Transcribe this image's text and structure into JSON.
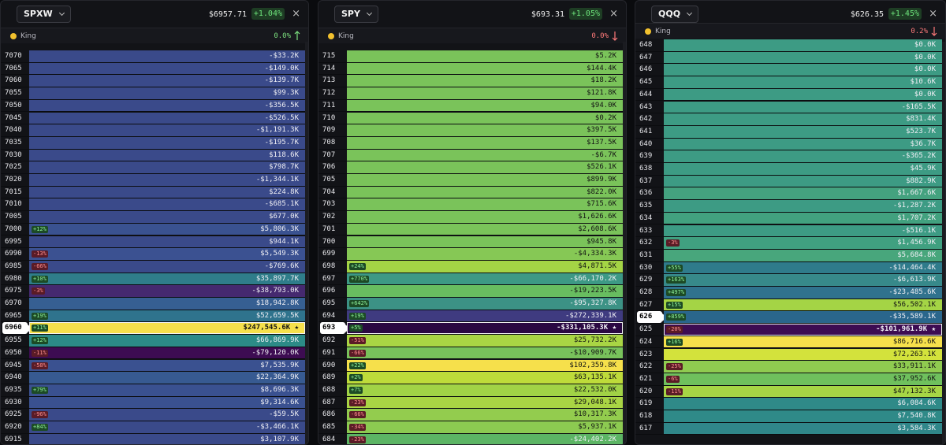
{
  "panels": [
    {
      "ticker": "SPXW",
      "price": "$6957.71",
      "change": "+1.04%",
      "king_label": "King",
      "king_pct": "0.0%",
      "trend": "up",
      "rows": [
        {
          "strike": "7070",
          "value": "-$33.2K",
          "color": "#3a4a8a"
        },
        {
          "strike": "7065",
          "value": "-$149.0K",
          "color": "#3a4a8a"
        },
        {
          "strike": "7060",
          "value": "-$139.7K",
          "color": "#3a4a8a"
        },
        {
          "strike": "7055",
          "value": "$99.3K",
          "color": "#3a4a8a"
        },
        {
          "strike": "7050",
          "value": "-$356.5K",
          "color": "#3a4a8a"
        },
        {
          "strike": "7045",
          "value": "-$526.5K",
          "color": "#3a4a8a"
        },
        {
          "strike": "7040",
          "value": "-$1,191.3K",
          "color": "#3a4a8a"
        },
        {
          "strike": "7035",
          "value": "-$195.7K",
          "color": "#3a4a8a"
        },
        {
          "strike": "7030",
          "value": "$118.6K",
          "color": "#3a4a8a"
        },
        {
          "strike": "7025",
          "value": "$798.7K",
          "color": "#3a4a8a"
        },
        {
          "strike": "7020",
          "value": "-$1,344.1K",
          "color": "#3a4a8a"
        },
        {
          "strike": "7015",
          "value": "$224.8K",
          "color": "#3a4a8a"
        },
        {
          "strike": "7010",
          "value": "-$685.1K",
          "color": "#3a4a8a"
        },
        {
          "strike": "7005",
          "value": "$677.0K",
          "color": "#3a4a8a"
        },
        {
          "strike": "7000",
          "value": "$5,806.3K",
          "badge": "+12%",
          "color": "#3a5290"
        },
        {
          "strike": "6995",
          "value": "$944.1K",
          "color": "#3a4a8a"
        },
        {
          "strike": "6990",
          "value": "$5,549.3K",
          "badge": "-13%",
          "color": "#3b5191"
        },
        {
          "strike": "6985",
          "value": "-$769.6K",
          "badge": "-66%",
          "color": "#3a4a8a"
        },
        {
          "strike": "6980",
          "value": "$35,897.7K",
          "badge": "+10%",
          "color": "#2f7d8a"
        },
        {
          "strike": "6975",
          "value": "-$38,793.0K",
          "badge": "-3%",
          "color": "#45296f"
        },
        {
          "strike": "6970",
          "value": "$18,942.8K",
          "color": "#365f92"
        },
        {
          "strike": "6965",
          "value": "$52,659.5K",
          "badge": "+19%",
          "color": "#2f738d"
        },
        {
          "strike": "6960",
          "value": "$247,545.6K",
          "badge": "+11%",
          "color": "#f6e04b",
          "spot": true,
          "max": true
        },
        {
          "strike": "6955",
          "value": "$66,869.9K",
          "badge": "+12%",
          "color": "#2c8b87"
        },
        {
          "strike": "6950",
          "value": "-$79,120.0K",
          "badge": "-11%",
          "color": "#3d0c52"
        },
        {
          "strike": "6945",
          "value": "$7,535.9K",
          "badge": "-58%",
          "color": "#3a5190"
        },
        {
          "strike": "6940",
          "value": "$22,364.9K",
          "color": "#375a91"
        },
        {
          "strike": "6935",
          "value": "$8,696.3K",
          "badge": "+79%",
          "color": "#3a5190"
        },
        {
          "strike": "6930",
          "value": "$9,314.6K",
          "color": "#3a5190"
        },
        {
          "strike": "6925",
          "value": "-$59.5K",
          "badge": "-96%",
          "color": "#3a4a8a"
        },
        {
          "strike": "6920",
          "value": "-$3,466.1K",
          "badge": "+84%",
          "color": "#3a4a8a"
        },
        {
          "strike": "6915",
          "value": "$3,107.9K",
          "color": "#3a4a8a"
        }
      ]
    },
    {
      "ticker": "SPY",
      "price": "$693.31",
      "change": "+1.05%",
      "king_label": "King",
      "king_pct": "0.0%",
      "trend": "down",
      "rows": [
        {
          "strike": "715",
          "value": "$5.2K",
          "color": "#7ac35a"
        },
        {
          "strike": "714",
          "value": "$144.4K",
          "color": "#7ac35a"
        },
        {
          "strike": "713",
          "value": "$18.2K",
          "color": "#7ac35a"
        },
        {
          "strike": "712",
          "value": "$121.8K",
          "color": "#7ac35a"
        },
        {
          "strike": "711",
          "value": "$94.0K",
          "color": "#7ac35a"
        },
        {
          "strike": "710",
          "value": "$0.2K",
          "color": "#7ac35a"
        },
        {
          "strike": "709",
          "value": "$397.5K",
          "color": "#7ac35a"
        },
        {
          "strike": "708",
          "value": "$137.5K",
          "color": "#7ac35a"
        },
        {
          "strike": "707",
          "value": "-$6.7K",
          "color": "#7ac35a"
        },
        {
          "strike": "706",
          "value": "$526.1K",
          "color": "#7ac35a"
        },
        {
          "strike": "705",
          "value": "$899.9K",
          "color": "#7ac35a"
        },
        {
          "strike": "704",
          "value": "$822.0K",
          "color": "#7ac35a"
        },
        {
          "strike": "703",
          "value": "$715.6K",
          "color": "#7ac35a"
        },
        {
          "strike": "702",
          "value": "$1,626.6K",
          "color": "#7ac35a"
        },
        {
          "strike": "701",
          "value": "$2,608.6K",
          "color": "#7ac35a"
        },
        {
          "strike": "700",
          "value": "$945.8K",
          "color": "#7ac35a"
        },
        {
          "strike": "699",
          "value": "-$4,334.3K",
          "color": "#86c855"
        },
        {
          "strike": "698",
          "value": "$4,871.5K",
          "badge": "+24%",
          "color": "#a4d445"
        },
        {
          "strike": "697",
          "value": "-$66,170.2K",
          "badge": "+770%",
          "color": "#3d9985"
        },
        {
          "strike": "696",
          "value": "-$19,223.5K",
          "color": "#68bd60"
        },
        {
          "strike": "695",
          "value": "-$95,327.8K",
          "badge": "+642%",
          "color": "#3c9285"
        },
        {
          "strike": "694",
          "value": "-$272,339.1K",
          "badge": "+19%",
          "color": "#3f3b80"
        },
        {
          "strike": "693",
          "value": "-$331,105.3K",
          "badge": "+5%",
          "color": "#2a0842",
          "spot": true,
          "max": true
        },
        {
          "strike": "692",
          "value": "$25,732.2K",
          "badge": "-51%",
          "color": "#a9d544"
        },
        {
          "strike": "691",
          "value": "-$10,909.7K",
          "badge": "-66%",
          "color": "#78c25b"
        },
        {
          "strike": "690",
          "value": "$102,359.8K",
          "badge": "+22%",
          "color": "#f6e04b"
        },
        {
          "strike": "689",
          "value": "$63,135.1K",
          "badge": "+2%",
          "color": "#bedb3a"
        },
        {
          "strike": "688",
          "value": "$22,532.0K",
          "badge": "+7%",
          "color": "#a1d346"
        },
        {
          "strike": "687",
          "value": "$29,048.1K",
          "badge": "-23%",
          "color": "#a9d544"
        },
        {
          "strike": "686",
          "value": "$10,317.3K",
          "badge": "-66%",
          "color": "#93cc4e"
        },
        {
          "strike": "685",
          "value": "$5,937.1K",
          "badge": "-34%",
          "color": "#8cca51"
        },
        {
          "strike": "684",
          "value": "-$24,402.2K",
          "badge": "-23%",
          "color": "#5cb564"
        }
      ]
    },
    {
      "ticker": "QQQ",
      "price": "$626.35",
      "change": "+1.45%",
      "king_label": "King",
      "king_pct": "0.2%",
      "trend": "down",
      "rows": [
        {
          "strike": "648",
          "value": "$0.0K",
          "color": "#3d9b84"
        },
        {
          "strike": "647",
          "value": "$0.0K",
          "color": "#3d9b84"
        },
        {
          "strike": "646",
          "value": "$0.0K",
          "color": "#3d9b84"
        },
        {
          "strike": "645",
          "value": "$10.6K",
          "color": "#3d9b84"
        },
        {
          "strike": "644",
          "value": "$0.0K",
          "color": "#3d9b84"
        },
        {
          "strike": "643",
          "value": "-$165.5K",
          "color": "#3d9b84"
        },
        {
          "strike": "642",
          "value": "$831.4K",
          "color": "#3d9b84"
        },
        {
          "strike": "641",
          "value": "$523.7K",
          "color": "#3d9b84"
        },
        {
          "strike": "640",
          "value": "$36.7K",
          "color": "#3d9b84"
        },
        {
          "strike": "639",
          "value": "-$365.2K",
          "color": "#3d9b84"
        },
        {
          "strike": "638",
          "value": "$45.9K",
          "color": "#3d9b84"
        },
        {
          "strike": "637",
          "value": "$882.9K",
          "color": "#3d9b84"
        },
        {
          "strike": "636",
          "value": "$1,667.6K",
          "color": "#44a27f"
        },
        {
          "strike": "635",
          "value": "-$1,287.2K",
          "color": "#3d9b84"
        },
        {
          "strike": "634",
          "value": "$1,707.2K",
          "color": "#42a17f"
        },
        {
          "strike": "633",
          "value": "-$516.1K",
          "color": "#3d9b84"
        },
        {
          "strike": "632",
          "value": "$1,456.9K",
          "badge": "-3%",
          "color": "#40a080"
        },
        {
          "strike": "631",
          "value": "$5,684.8K",
          "color": "#48a67c"
        },
        {
          "strike": "630",
          "value": "-$14,464.4K",
          "badge": "+55%",
          "color": "#2f7b8b"
        },
        {
          "strike": "629",
          "value": "-$6,613.9K",
          "badge": "+163%",
          "color": "#37898a"
        },
        {
          "strike": "628",
          "value": "-$23,485.6K",
          "badge": "+497%",
          "color": "#30728d"
        },
        {
          "strike": "627",
          "value": "$56,502.1K",
          "badge": "+15%",
          "color": "#a4d445"
        },
        {
          "strike": "626",
          "value": "-$35,589.1K",
          "badge": "+859%",
          "color": "#2a668c",
          "spot": true
        },
        {
          "strike": "625",
          "value": "-$101,961.9K",
          "badge": "-20%",
          "color": "#3d0c52",
          "max": true
        },
        {
          "strike": "624",
          "value": "$86,716.6K",
          "badge": "+16%",
          "color": "#f6e04b"
        },
        {
          "strike": "623",
          "value": "$72,263.1K",
          "color": "#d3e23c"
        },
        {
          "strike": "622",
          "value": "$33,911.1K",
          "badge": "-25%",
          "color": "#8fcb50"
        },
        {
          "strike": "621",
          "value": "$37,952.6K",
          "badge": "-6%",
          "color": "#6fc05d"
        },
        {
          "strike": "620",
          "value": "$47,132.3K",
          "badge": "-11%",
          "color": "#a6d545"
        },
        {
          "strike": "619",
          "value": "$6,084.6K",
          "color": "#2f8a88"
        },
        {
          "strike": "618",
          "value": "$7,540.8K",
          "color": "#2f8a88"
        },
        {
          "strike": "617",
          "value": "$3,584.3K",
          "color": "#30878a"
        }
      ]
    }
  ]
}
